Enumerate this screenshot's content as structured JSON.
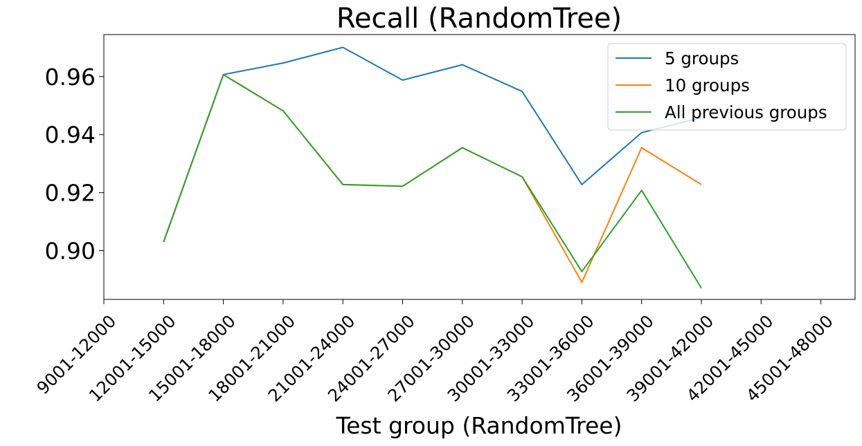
{
  "chart_data": {
    "type": "line",
    "title": "Recall (RandomTree)",
    "xlabel": "Test group (RandomTree)",
    "ylabel": "",
    "categories": [
      "9001-12000",
      "12001-15000",
      "15001-18000",
      "18001-21000",
      "21001-24000",
      "24001-27000",
      "27001-30000",
      "30001-33000",
      "33001-36000",
      "36001-39000",
      "39001-42000",
      "42001-45000",
      "45001-48000"
    ],
    "yticks": [
      "0.90",
      "0.92",
      "0.94",
      "0.96"
    ],
    "ylim": [
      0.8832,
      0.9745
    ],
    "legend_position": "top-right",
    "grid": false,
    "series": [
      {
        "name": "5 groups",
        "color": "#1f77b4",
        "values": [
          null,
          0.903,
          0.9607,
          0.9647,
          0.9701,
          0.9588,
          0.9641,
          0.9549,
          0.9228,
          0.9407,
          0.9459,
          null,
          null
        ]
      },
      {
        "name": "10 groups",
        "color": "#ff7f0e",
        "values": [
          null,
          0.903,
          0.9607,
          0.9482,
          0.9228,
          0.9222,
          0.9355,
          0.9255,
          0.8891,
          0.9355,
          0.9228,
          null,
          null
        ]
      },
      {
        "name": "All previous groups",
        "color": "#2ca02c",
        "values": [
          null,
          0.903,
          0.9607,
          0.9482,
          0.9228,
          0.9222,
          0.9355,
          0.9255,
          0.8928,
          0.9208,
          0.8871,
          null,
          null
        ]
      }
    ]
  }
}
